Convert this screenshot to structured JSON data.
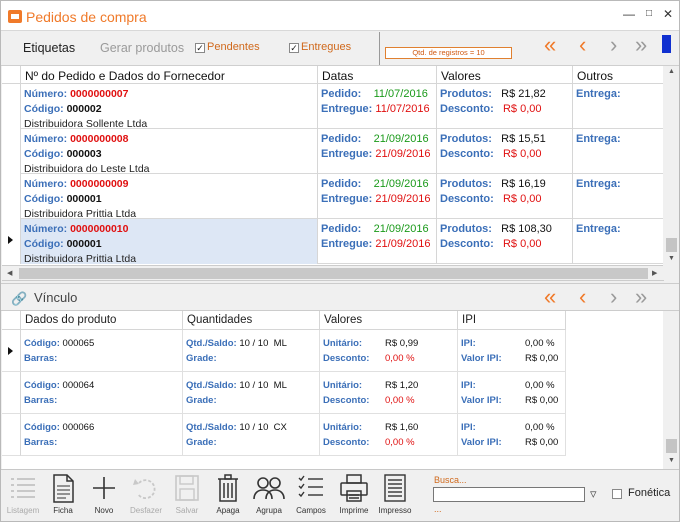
{
  "window": {
    "title": "Pedidos de compra"
  },
  "toolbar": {
    "etiquetas": "Etiquetas",
    "gerar_produtos": "Gerar produtos",
    "pendentes": "Pendentes",
    "entregues": "Entregues",
    "qtd_registros": "Qtd. de registros = 10"
  },
  "grid1": {
    "headers": [
      "Nº do Pedido e Dados do Fornecedor",
      "Datas",
      "Valores",
      "Outros"
    ],
    "labels": {
      "numero": "Número:",
      "codigo": "Código:",
      "pedido": "Pedido:",
      "entregue": "Entregue:",
      "produtos": "Produtos:",
      "desconto": "Desconto:",
      "entrega": "Entrega:"
    },
    "rows": [
      {
        "numero": "0000000007",
        "codigo": "000002",
        "fornecedor": "Distribuidora Sollente Ltda",
        "pedido": "11/07/2016",
        "entregue": "11/07/2016",
        "produtos": "R$ 21,82",
        "desconto": "R$ 0,00",
        "entrega": ""
      },
      {
        "numero": "0000000008",
        "codigo": "000003",
        "fornecedor": "Distribuidora do Leste Ltda",
        "pedido": "21/09/2016",
        "entregue": "21/09/2016",
        "produtos": "R$ 15,51",
        "desconto": "R$ 0,00",
        "entrega": ""
      },
      {
        "numero": "0000000009",
        "codigo": "000001",
        "fornecedor": "Distribuidora Prittia Ltda",
        "pedido": "21/09/2016",
        "entregue": "21/09/2016",
        "produtos": "R$ 16,19",
        "desconto": "R$ 0,00",
        "entrega": ""
      },
      {
        "numero": "0000000010",
        "codigo": "000001",
        "fornecedor": "Distribuidora Prittia Ltda",
        "pedido": "21/09/2016",
        "entregue": "21/09/2016",
        "produtos": "R$ 108,30",
        "desconto": "R$ 0,00",
        "entrega": ""
      }
    ]
  },
  "vinculo": {
    "label": "Vínculo"
  },
  "grid2": {
    "headers": [
      "Dados do produto",
      "Quantidades",
      "Valores",
      "IPI"
    ],
    "labels": {
      "codigo": "Código:",
      "barras": "Barras:",
      "qtd_saldo": "Qtd./Saldo:",
      "grade": "Grade:",
      "unitario": "Unitário:",
      "desconto": "Desconto:",
      "ipi": "IPI:",
      "valor_ipi": "Valor IPI:"
    },
    "rows": [
      {
        "codigo": "000065",
        "qtd": "10 / 10",
        "un": "ML",
        "unitario": "R$ 0,99",
        "desconto": "0,00 %",
        "ipi": "0,00 %",
        "valor_ipi": "R$ 0,00"
      },
      {
        "codigo": "000064",
        "qtd": "10 / 10",
        "un": "ML",
        "unitario": "R$ 1,20",
        "desconto": "0,00 %",
        "ipi": "0,00 %",
        "valor_ipi": "R$ 0,00"
      },
      {
        "codigo": "000066",
        "qtd": "10 / 10",
        "un": "CX",
        "unitario": "R$ 1,60",
        "desconto": "0,00 %",
        "ipi": "0,00 %",
        "valor_ipi": "R$ 0,00"
      }
    ]
  },
  "bottom": {
    "buttons": [
      "Listagem",
      "Ficha",
      "Novo",
      "Desfazer",
      "Salvar",
      "Apaga",
      "Agrupa",
      "Campos",
      "Imprime",
      "Impresso"
    ],
    "busca_label": "Busca...",
    "busca_value": "",
    "busca_more": "...",
    "fonetica": "Fonética"
  },
  "colors": {
    "accent": "#f07a2a",
    "label_blue": "#3b6fb8",
    "red": "#e01010",
    "green": "#1a9a1a",
    "selected_row": "#dde7f5"
  }
}
